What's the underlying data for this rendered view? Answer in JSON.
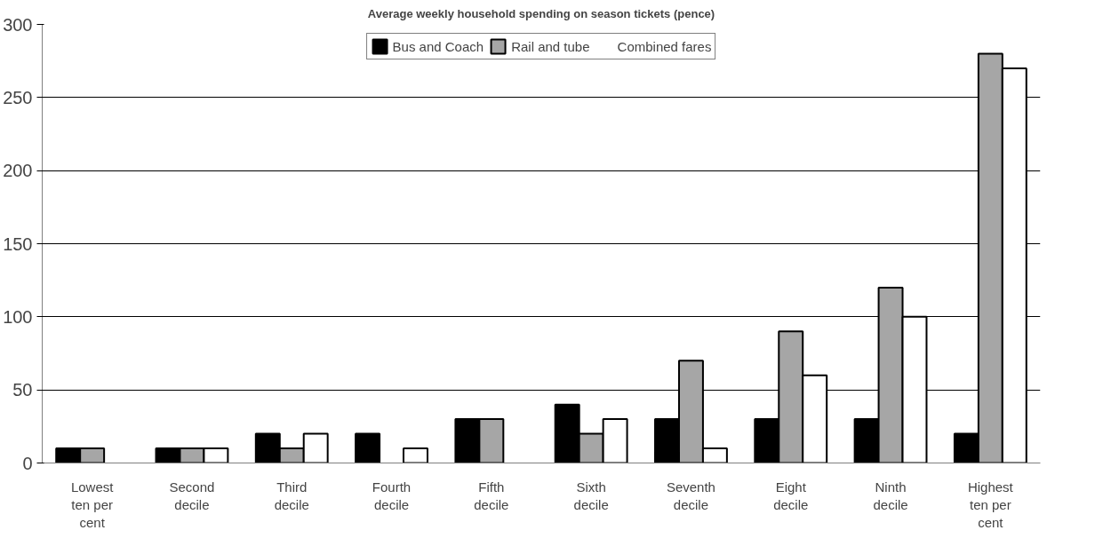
{
  "chart_data": {
    "type": "bar",
    "title": "Average weekly household spending on season tickets (pence)",
    "categories": [
      "Lowest ten per cent",
      "Second decile",
      "Third decile",
      "Fourth decile",
      "Fifth decile",
      "Sixth decile",
      "Seventh decile",
      "Eight decile",
      "Ninth decile",
      "Highest ten per cent"
    ],
    "series": [
      {
        "name": "Bus and Coach",
        "color": "#000000",
        "values": [
          10,
          10,
          20,
          20,
          30,
          40,
          30,
          30,
          30,
          20
        ]
      },
      {
        "name": "Rail and tube",
        "color": "#a6a6a6",
        "values": [
          10,
          10,
          10,
          0,
          30,
          20,
          70,
          90,
          120,
          280
        ]
      },
      {
        "name": "Combined fares",
        "color": "#ffffff",
        "values": [
          0,
          10,
          20,
          10,
          0,
          30,
          10,
          60,
          100,
          270
        ]
      }
    ],
    "ylim": [
      0,
      300
    ],
    "yticks": [
      0,
      50,
      100,
      150,
      200,
      250,
      300
    ],
    "grid": "y",
    "legend": "top"
  }
}
